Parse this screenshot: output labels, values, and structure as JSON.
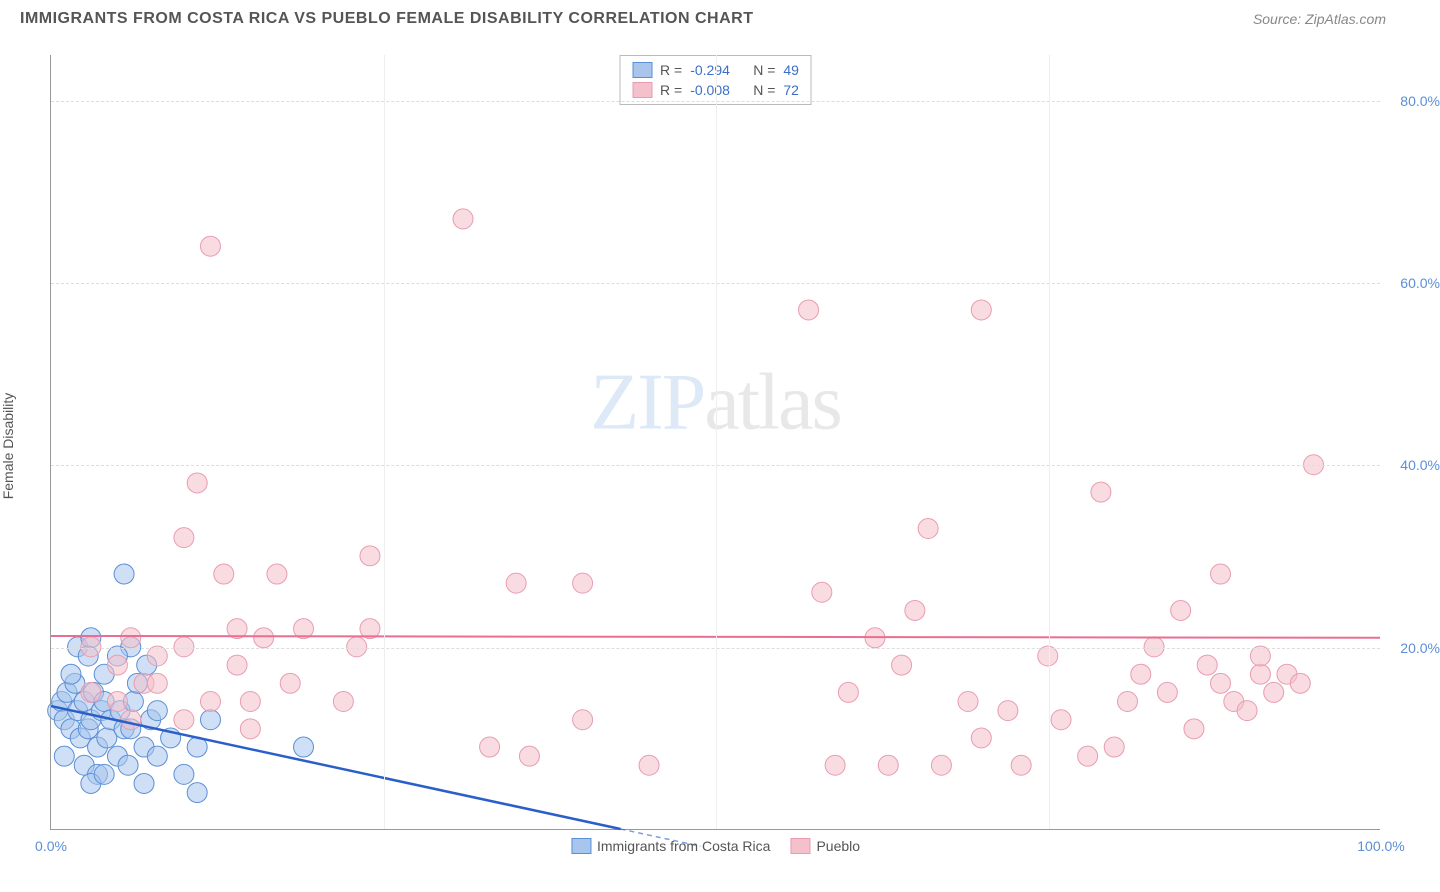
{
  "header": {
    "title": "IMMIGRANTS FROM COSTA RICA VS PUEBLO FEMALE DISABILITY CORRELATION CHART",
    "source": "Source: ZipAtlas.com"
  },
  "chart": {
    "type": "scatter",
    "ylabel": "Female Disability",
    "label_fontsize": 14,
    "title_fontsize": 16,
    "background_color": "#ffffff",
    "grid_color": "#dddddd",
    "axis_color": "#999999",
    "tick_color": "#5b8fd6",
    "xlim": [
      0,
      100
    ],
    "ylim": [
      0,
      85
    ],
    "xticks": [
      0,
      100
    ],
    "xtick_labels": [
      "0.0%",
      "100.0%"
    ],
    "yticks": [
      20,
      40,
      60,
      80
    ],
    "ytick_labels": [
      "20.0%",
      "40.0%",
      "60.0%",
      "80.0%"
    ],
    "v_gridlines": [
      25,
      50,
      75
    ],
    "marker_radius": 10,
    "marker_opacity": 0.55,
    "watermark": "ZIPatlas",
    "series": [
      {
        "name": "Immigrants from Costa Rica",
        "color_fill": "#a8c5ed",
        "color_stroke": "#5b8fd6",
        "R": "-0.294",
        "N": "49",
        "trend": {
          "y_at_x0": 13.5,
          "y_at_x100": -18,
          "color": "#2a5fc9",
          "width": 2.5
        },
        "points": [
          [
            0.5,
            13
          ],
          [
            0.8,
            14
          ],
          [
            1,
            12
          ],
          [
            1.2,
            15
          ],
          [
            1.5,
            11
          ],
          [
            1.8,
            16
          ],
          [
            2,
            13
          ],
          [
            2.2,
            10
          ],
          [
            2.5,
            14
          ],
          [
            2.8,
            11
          ],
          [
            3,
            12
          ],
          [
            3.2,
            15
          ],
          [
            3.5,
            9
          ],
          [
            3.8,
            13
          ],
          [
            4,
            14
          ],
          [
            4.2,
            10
          ],
          [
            4.5,
            12
          ],
          [
            5,
            8
          ],
          [
            5.2,
            13
          ],
          [
            5.5,
            11
          ],
          [
            5.8,
            7
          ],
          [
            6,
            20
          ],
          [
            6.2,
            14
          ],
          [
            6.5,
            16
          ],
          [
            7,
            9
          ],
          [
            7.2,
            18
          ],
          [
            7.5,
            12
          ],
          [
            2,
            20
          ],
          [
            3,
            21
          ],
          [
            4,
            17
          ],
          [
            5,
            19
          ],
          [
            5.5,
            28
          ],
          [
            1,
            8
          ],
          [
            2.5,
            7
          ],
          [
            3.5,
            6
          ],
          [
            7,
            5
          ],
          [
            11,
            4
          ],
          [
            8,
            8
          ],
          [
            9,
            10
          ],
          [
            10,
            6
          ],
          [
            11,
            9
          ],
          [
            19,
            9
          ],
          [
            12,
            12
          ],
          [
            3,
            5
          ],
          [
            4,
            6
          ],
          [
            1.5,
            17
          ],
          [
            2.8,
            19
          ],
          [
            6,
            11
          ],
          [
            8,
            13
          ]
        ]
      },
      {
        "name": "Pueblo",
        "color_fill": "#f4c0cb",
        "color_stroke": "#e99cb0",
        "R": "-0.008",
        "N": "72",
        "trend": {
          "y_at_x0": 21.2,
          "y_at_x100": 21.0,
          "color": "#e86f92",
          "width": 2
        },
        "points": [
          [
            3,
            20
          ],
          [
            5,
            18
          ],
          [
            6,
            21
          ],
          [
            7,
            16
          ],
          [
            8,
            19
          ],
          [
            10,
            32
          ],
          [
            10,
            20
          ],
          [
            11,
            38
          ],
          [
            12,
            64
          ],
          [
            13,
            28
          ],
          [
            14,
            18
          ],
          [
            14,
            22
          ],
          [
            15,
            14
          ],
          [
            16,
            21
          ],
          [
            17,
            28
          ],
          [
            18,
            16
          ],
          [
            19,
            22
          ],
          [
            22,
            14
          ],
          [
            23,
            20
          ],
          [
            24,
            30
          ],
          [
            24,
            22
          ],
          [
            31,
            67
          ],
          [
            33,
            9
          ],
          [
            35,
            27
          ],
          [
            36,
            8
          ],
          [
            40,
            27
          ],
          [
            40,
            12
          ],
          [
            45,
            7
          ],
          [
            57,
            57
          ],
          [
            58,
            26
          ],
          [
            59,
            7
          ],
          [
            60,
            15
          ],
          [
            62,
            21
          ],
          [
            63,
            7
          ],
          [
            64,
            18
          ],
          [
            65,
            24
          ],
          [
            66,
            33
          ],
          [
            67,
            7
          ],
          [
            69,
            14
          ],
          [
            70,
            57
          ],
          [
            70,
            10
          ],
          [
            72,
            13
          ],
          [
            73,
            7
          ],
          [
            75,
            19
          ],
          [
            76,
            12
          ],
          [
            78,
            8
          ],
          [
            79,
            37
          ],
          [
            80,
            9
          ],
          [
            81,
            14
          ],
          [
            82,
            17
          ],
          [
            83,
            20
          ],
          [
            84,
            15
          ],
          [
            85,
            24
          ],
          [
            86,
            11
          ],
          [
            87,
            18
          ],
          [
            88,
            16
          ],
          [
            88,
            28
          ],
          [
            89,
            14
          ],
          [
            90,
            13
          ],
          [
            91,
            17
          ],
          [
            91,
            19
          ],
          [
            92,
            15
          ],
          [
            93,
            17
          ],
          [
            94,
            16
          ],
          [
            95,
            40
          ],
          [
            3,
            15
          ],
          [
            5,
            14
          ],
          [
            6,
            12
          ],
          [
            8,
            16
          ],
          [
            10,
            12
          ],
          [
            12,
            14
          ],
          [
            15,
            11
          ]
        ]
      }
    ]
  },
  "legend_bottom": {
    "items": [
      {
        "label": "Immigrants from Costa Rica",
        "fill": "#a8c5ed",
        "stroke": "#5b8fd6"
      },
      {
        "label": "Pueblo",
        "fill": "#f4c0cb",
        "stroke": "#e99cb0"
      }
    ]
  }
}
